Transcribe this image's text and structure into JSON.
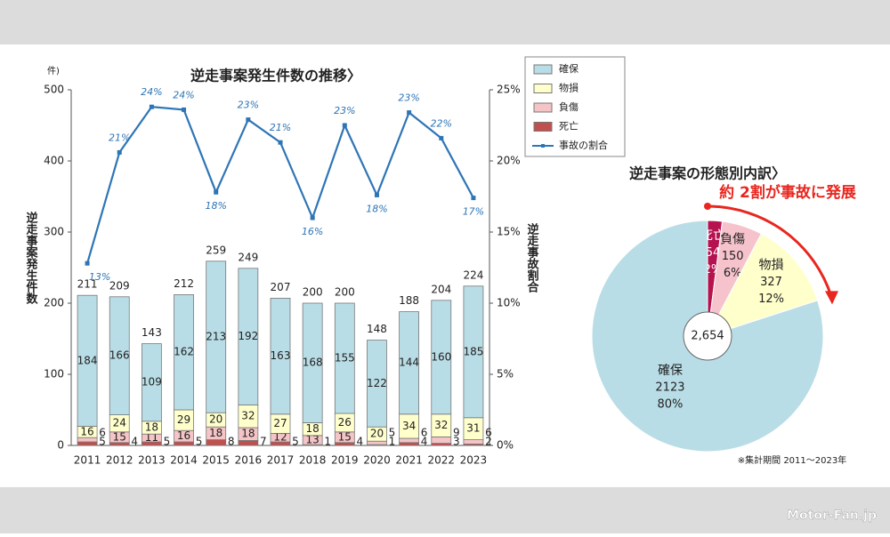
{
  "chart_data": [
    {
      "type": "bar",
      "stacked": true,
      "title": "逆走事案発生件数の推移〉",
      "y_unit": "件)",
      "y_label": "逆走事案発生件数",
      "y2_label": "逆走事故割合",
      "categories": [
        "2011",
        "2012",
        "2013",
        "2014",
        "2015",
        "2016",
        "2017",
        "2018",
        "2019",
        "2020",
        "2021",
        "2022",
        "2023"
      ],
      "series": [
        {
          "name": "死亡",
          "color": "#c0504d",
          "values": [
            5,
            4,
            5,
            5,
            8,
            7,
            5,
            1,
            4,
            1,
            4,
            3,
            2
          ]
        },
        {
          "name": "負傷",
          "color": "#f4c4c6",
          "values": [
            6,
            15,
            11,
            16,
            18,
            18,
            12,
            13,
            15,
            5,
            6,
            9,
            6
          ]
        },
        {
          "name": "物損",
          "color": "#ffffcc",
          "values": [
            16,
            24,
            18,
            29,
            20,
            32,
            27,
            18,
            26,
            20,
            34,
            32,
            31
          ]
        },
        {
          "name": "確保",
          "color": "#b9dde6",
          "values": [
            184,
            166,
            109,
            162,
            213,
            192,
            163,
            168,
            155,
            122,
            144,
            160,
            185
          ]
        },
        {
          "name": "事故の割合",
          "type": "line",
          "axis": "y2",
          "color": "#2e75b6",
          "values": [
            12.8,
            20.6,
            23.8,
            23.6,
            17.8,
            22.9,
            21.3,
            16.0,
            22.5,
            17.6,
            23.4,
            21.6,
            17.4
          ],
          "value_labels": [
            "13%",
            "21%",
            "24%",
            "24%",
            "18%",
            "23%",
            "21%",
            "16%",
            "23%",
            "18%",
            "23%",
            "22%",
            "17%"
          ]
        }
      ],
      "totals": [
        211,
        209,
        143,
        212,
        259,
        249,
        207,
        200,
        200,
        148,
        188,
        204,
        224
      ],
      "ylim": [
        0,
        500
      ],
      "yticks": [
        0,
        100,
        200,
        300,
        400,
        500
      ],
      "y2lim": [
        0,
        25
      ],
      "y2ticks": [
        {
          "value": 0,
          "label": "0%"
        },
        {
          "value": 5,
          "label": "5%"
        },
        {
          "value": 10,
          "label": "10%"
        },
        {
          "value": 15,
          "label": "15%"
        },
        {
          "value": 20,
          "label": "20%"
        },
        {
          "value": 25,
          "label": "25%"
        }
      ]
    },
    {
      "type": "pie",
      "title": "逆走事案の形態別内訳〉",
      "annotation": "約 2割が事故に発展",
      "categories": [
        "死亡",
        "負傷",
        "物損",
        "確保"
      ],
      "values": [
        54,
        150,
        327,
        2123
      ],
      "percent_labels": [
        "2%",
        "6%",
        "12%",
        "80%"
      ],
      "colors": [
        "#b5124f",
        "#f6c3cc",
        "#ffffcc",
        "#b9dde6"
      ],
      "total": {
        "value": 2654,
        "label": "2,654"
      },
      "note": "※集計期間 2011〜2023年"
    }
  ],
  "watermark": "Motor-Fan.jp"
}
